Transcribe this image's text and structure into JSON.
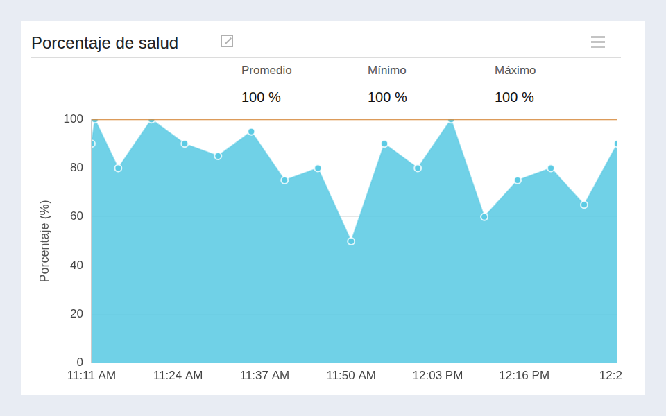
{
  "chart_data": {
    "type": "line",
    "title": "Porcentaje de salud",
    "y_label": "Porcentaje (%)",
    "stats": [
      {
        "label": "Promedio",
        "text": "100 %"
      },
      {
        "label": "Mínimo",
        "text": "100 %"
      },
      {
        "label": "Máximo",
        "text": "100 %"
      }
    ],
    "x": [
      671,
      671.5,
      675,
      680,
      685,
      690,
      695,
      700,
      705,
      710,
      715,
      720,
      725,
      730,
      735,
      740,
      745,
      750
    ],
    "series": [
      {
        "type": "area",
        "color": "#5ccbe4",
        "marker": "circle",
        "values": [
          90,
          100,
          80,
          100,
          90,
          85,
          95,
          75,
          80,
          50,
          90,
          80,
          100,
          60,
          75,
          80,
          65,
          90
        ]
      },
      {
        "type": "line",
        "color": "#d9822b",
        "values": [
          100,
          100,
          100,
          100,
          100,
          100,
          100,
          100,
          100,
          100,
          100,
          100,
          100,
          100,
          100,
          100,
          100,
          100
        ]
      }
    ],
    "xlim": [
      671,
      750
    ],
    "xticks": [
      {
        "value": 671,
        "label": "11:11 AM"
      },
      {
        "value": 684,
        "label": "11:24 AM"
      },
      {
        "value": 697,
        "label": "11:37 AM"
      },
      {
        "value": 710,
        "label": "11:50 AM"
      },
      {
        "value": 723,
        "label": "12:03 PM"
      },
      {
        "value": 736,
        "label": "12:16 PM"
      },
      {
        "value": 749,
        "label": "12:2"
      }
    ],
    "ylim": [
      0,
      100
    ],
    "yticks": [
      0,
      20,
      40,
      60,
      80,
      100
    ],
    "grid": true
  }
}
